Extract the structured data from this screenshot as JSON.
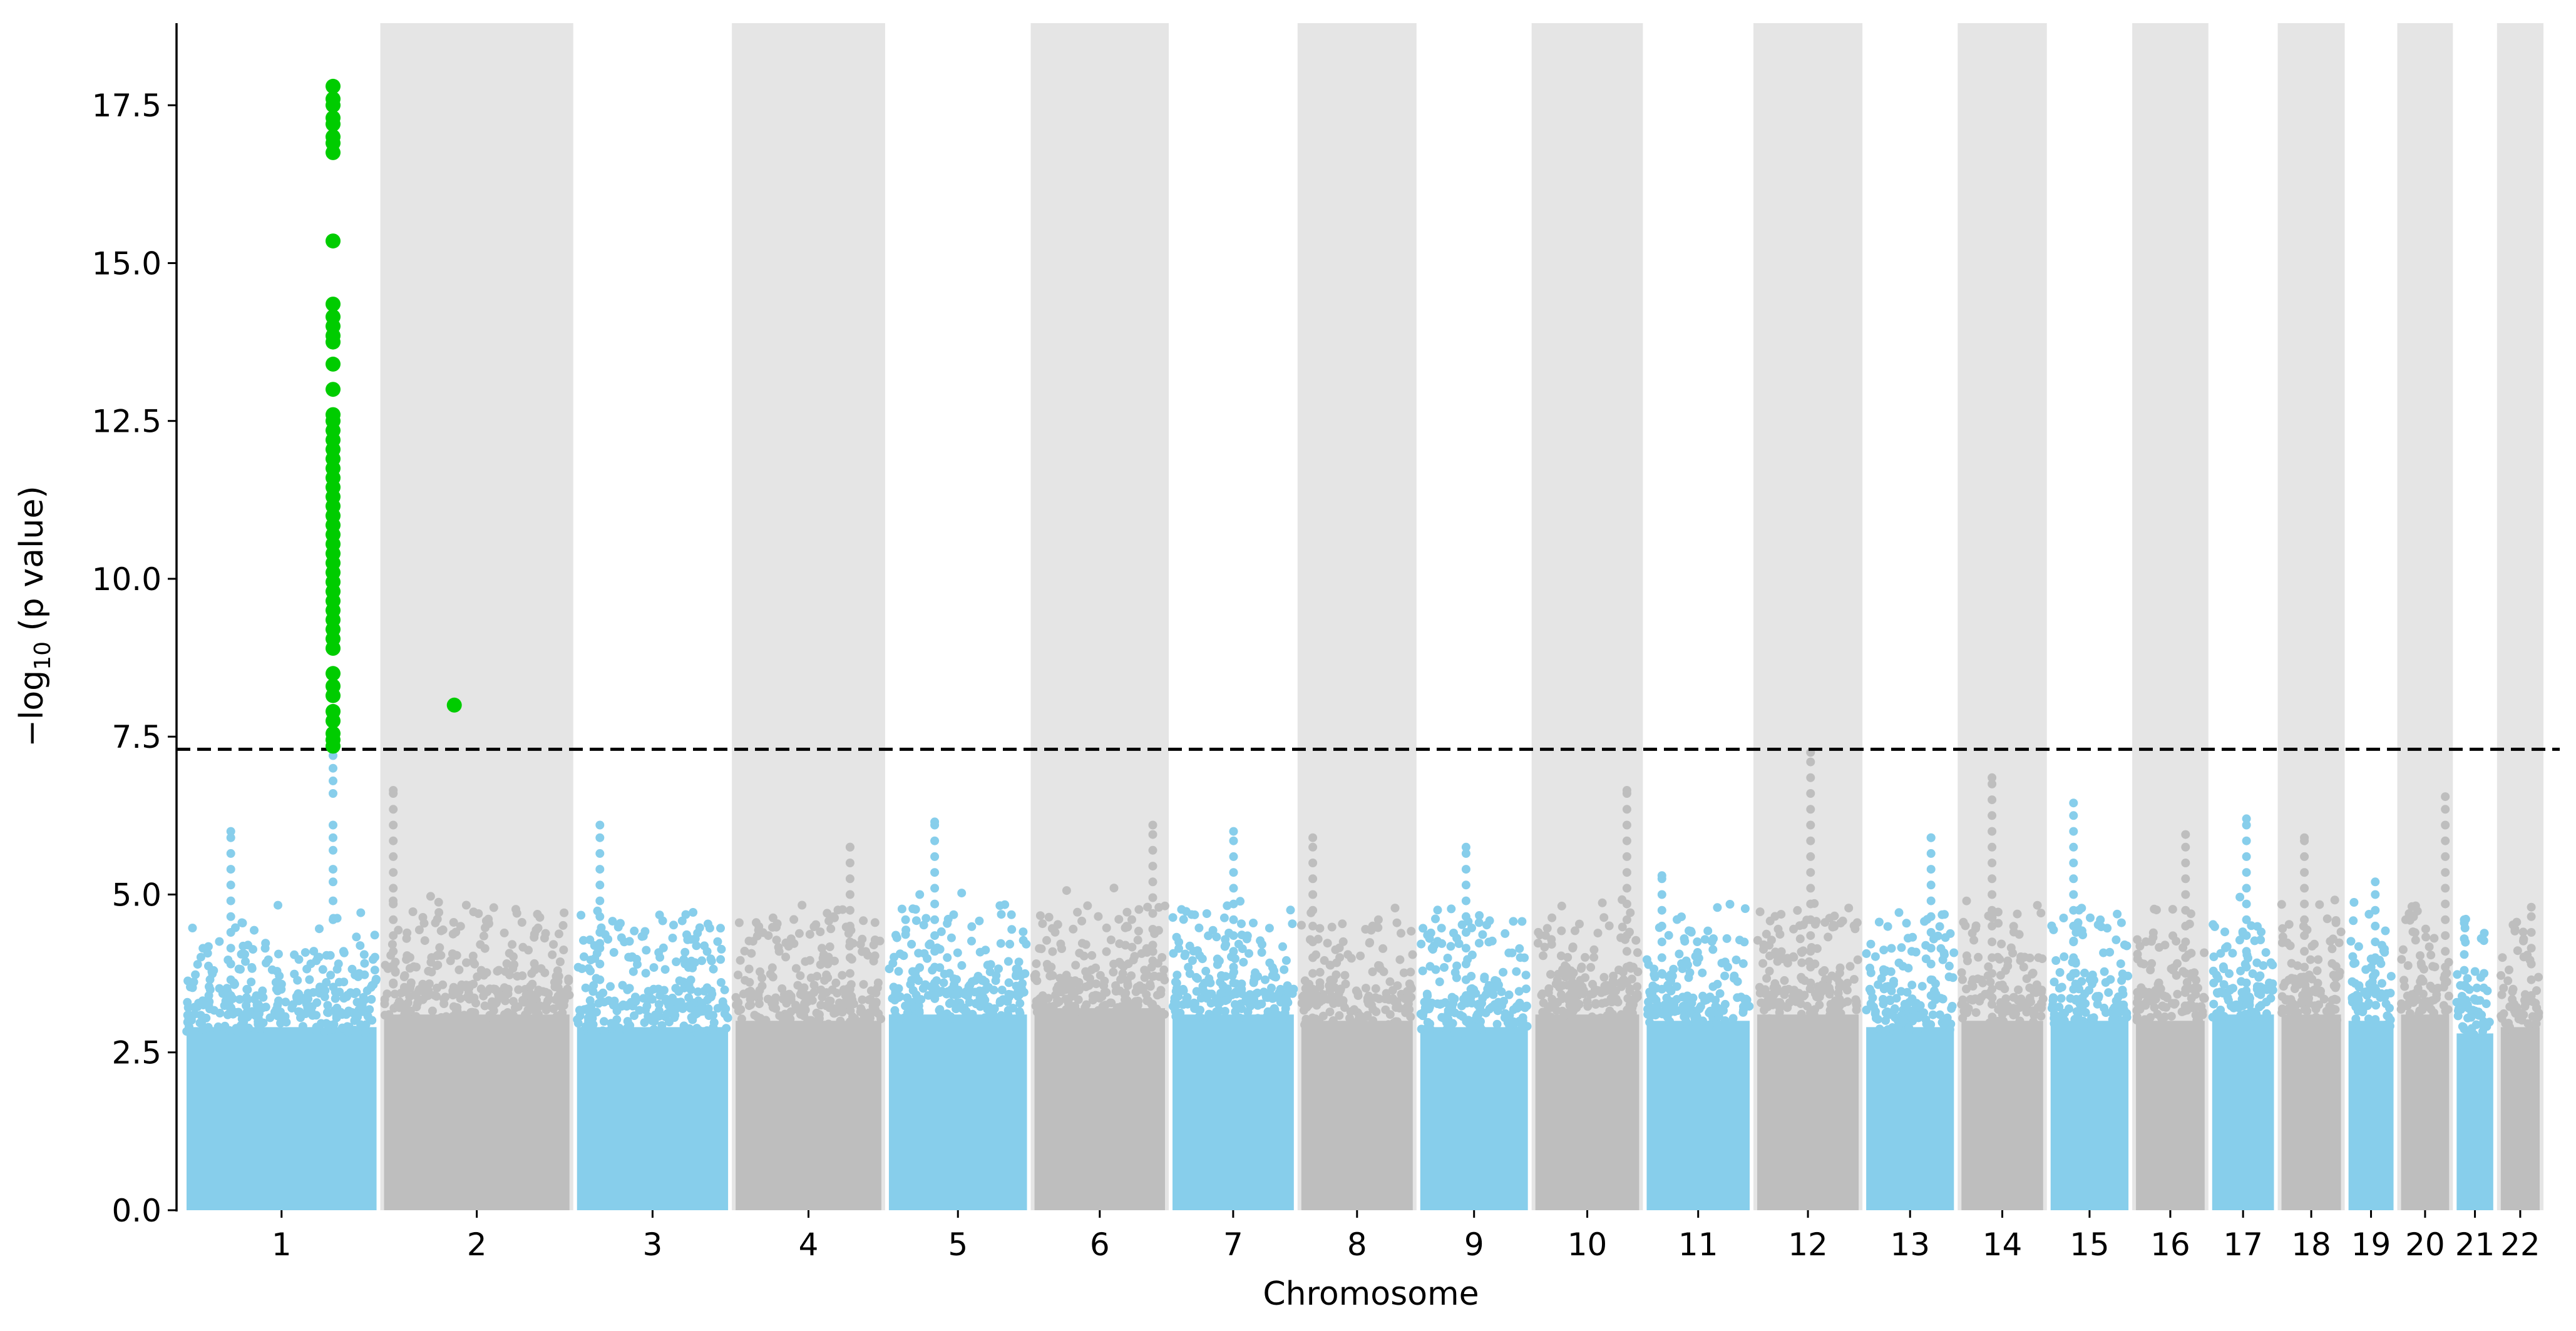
{
  "chart_data": {
    "type": "scatter",
    "subtype": "manhattan",
    "title": "",
    "xlabel": "Chromosome",
    "ylabel_prefix": "−log",
    "ylabel_sub": "10",
    "ylabel_suffix": " (p value)",
    "ylim": [
      0,
      18.8
    ],
    "yticks": [
      "0.0",
      "2.5",
      "5.0",
      "7.5",
      "10.0",
      "12.5",
      "15.0",
      "17.5"
    ],
    "ytick_values": [
      0,
      2.5,
      5,
      7.5,
      10,
      12.5,
      15,
      17.5
    ],
    "significance_threshold": 7.3,
    "grid": false,
    "legend": "none",
    "colors": {
      "odd_chromosome": "#87ceeb",
      "even_chromosome": "#bebebe",
      "significant": "#00cc00",
      "even_band": "#e5e5e5",
      "threshold": "#000000"
    },
    "chromosomes": [
      {
        "label": "1",
        "length_mb": 249,
        "bulk_max": 3.4,
        "peak": 6.0,
        "peak_pos": 58
      },
      {
        "label": "2",
        "length_mb": 243,
        "bulk_max": 3.6,
        "peak": 6.65,
        "peak_pos": 12
      },
      {
        "label": "3",
        "length_mb": 198,
        "bulk_max": 3.4,
        "peak": 6.1,
        "peak_pos": 30
      },
      {
        "label": "4",
        "length_mb": 191,
        "bulk_max": 3.5,
        "peak": 5.75,
        "peak_pos": 150
      },
      {
        "label": "5",
        "length_mb": 181,
        "bulk_max": 3.6,
        "peak": 6.15,
        "peak_pos": 60
      },
      {
        "label": "6",
        "length_mb": 171,
        "bulk_max": 3.7,
        "peak": 6.1,
        "peak_pos": 155
      },
      {
        "label": "7",
        "length_mb": 159,
        "bulk_max": 3.6,
        "peak": 6.0,
        "peak_pos": 80
      },
      {
        "label": "8",
        "length_mb": 146,
        "bulk_max": 3.5,
        "peak": 5.9,
        "peak_pos": 15
      },
      {
        "label": "9",
        "length_mb": 141,
        "bulk_max": 3.4,
        "peak": 5.75,
        "peak_pos": 60
      },
      {
        "label": "10",
        "length_mb": 136,
        "bulk_max": 3.6,
        "peak": 6.65,
        "peak_pos": 120
      },
      {
        "label": "11",
        "length_mb": 135,
        "bulk_max": 3.5,
        "peak": 5.3,
        "peak_pos": 20
      },
      {
        "label": "12",
        "length_mb": 133,
        "bulk_max": 3.6,
        "peak": 7.25,
        "peak_pos": 70
      },
      {
        "label": "13",
        "length_mb": 115,
        "bulk_max": 3.4,
        "peak": 5.9,
        "peak_pos": 85
      },
      {
        "label": "14",
        "length_mb": 107,
        "bulk_max": 3.5,
        "peak": 6.85,
        "peak_pos": 40
      },
      {
        "label": "15",
        "length_mb": 102,
        "bulk_max": 3.5,
        "peak": 6.45,
        "peak_pos": 30
      },
      {
        "label": "16",
        "length_mb": 90,
        "bulk_max": 3.5,
        "peak": 5.95,
        "peak_pos": 65
      },
      {
        "label": "17",
        "length_mb": 81,
        "bulk_max": 3.6,
        "peak": 6.2,
        "peak_pos": 45
      },
      {
        "label": "18",
        "length_mb": 78,
        "bulk_max": 3.6,
        "peak": 5.9,
        "peak_pos": 30
      },
      {
        "label": "19",
        "length_mb": 59,
        "bulk_max": 3.5,
        "peak": 5.2,
        "peak_pos": 35
      },
      {
        "label": "20",
        "length_mb": 63,
        "bulk_max": 3.6,
        "peak": 6.55,
        "peak_pos": 58
      },
      {
        "label": "21",
        "length_mb": 48,
        "bulk_max": 3.3,
        "peak": 4.6,
        "peak_pos": 10
      },
      {
        "label": "22",
        "length_mb": 51,
        "bulk_max": 3.4,
        "peak": 4.8,
        "peak_pos": 40
      }
    ],
    "significant_hits": [
      {
        "chr": "1",
        "pos_mb": 192,
        "values": [
          17.8,
          17.6,
          17.5,
          17.3,
          17.2,
          17.0,
          16.9,
          16.75,
          15.35,
          14.35,
          14.15,
          14.0,
          13.85,
          13.75,
          13.4,
          13.0,
          12.6,
          12.5,
          12.35,
          12.2,
          12.05,
          11.9,
          11.75,
          11.6,
          11.45,
          11.3,
          11.15,
          11.0,
          10.85,
          10.7,
          10.55,
          10.4,
          10.25,
          10.1,
          9.95,
          9.8,
          9.65,
          9.5,
          9.35,
          9.2,
          9.05,
          8.9,
          8.5,
          8.3,
          8.15,
          7.9,
          7.75,
          7.55,
          7.45,
          7.35
        ]
      },
      {
        "chr": "2",
        "pos_mb": 92,
        "values": [
          8.0
        ]
      }
    ],
    "subthreshold_column": {
      "chr": "1",
      "pos_mb": 192,
      "values": [
        7.2,
        7.0,
        6.8,
        6.6,
        6.1,
        5.9,
        5.7,
        5.4,
        5.2,
        4.9,
        4.6
      ]
    }
  }
}
